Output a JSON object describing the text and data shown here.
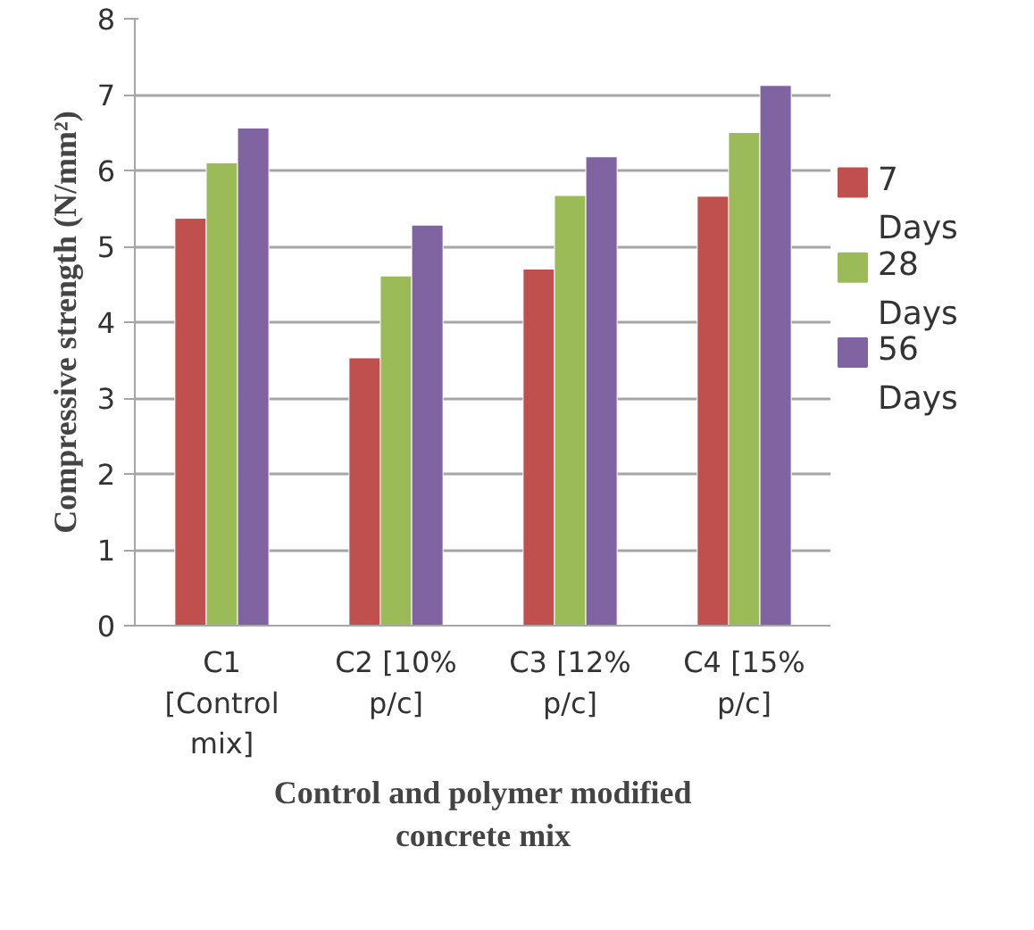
{
  "chart_data": {
    "type": "bar",
    "xlabel": "Control and polymer modified concrete mix",
    "ylabel": "Compressive strength (N/mm²)",
    "categories": [
      "C1 [Control mix]",
      "C2 [10% p/c]",
      "C3 [12% p/c]",
      "C4 [15% p/c]"
    ],
    "series": [
      {
        "name": "7 Days",
        "color": "#c0504d",
        "values": [
          5.37,
          3.53,
          4.7,
          5.66
        ]
      },
      {
        "name": "28 Days",
        "color": "#9bbb59",
        "values": [
          6.1,
          4.61,
          5.67,
          6.5
        ]
      },
      {
        "name": "56 Days",
        "color": "#8064a2",
        "values": [
          6.56,
          5.28,
          6.18,
          7.12
        ]
      }
    ],
    "ylim": [
      0,
      8
    ],
    "yticks": [
      0,
      1,
      2,
      3,
      4,
      5,
      6,
      7,
      8
    ],
    "grid": "y",
    "legend": "right"
  }
}
